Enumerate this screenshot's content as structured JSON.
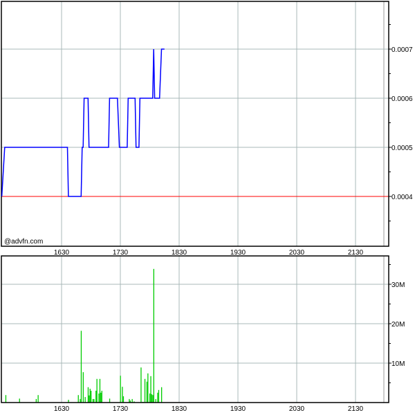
{
  "watermark": "@advfn.com",
  "colors": {
    "price_line": "#0000ff",
    "reference_line": "#ff0000",
    "volume_bars": "#00cc00",
    "grid": "#a9b8b8"
  },
  "chart_data": [
    {
      "type": "line",
      "step": true,
      "x_tick_labels": [
        "1630",
        "1730",
        "1830",
        "1930",
        "2030",
        "2130"
      ],
      "y_tick_labels": [
        "0.0007",
        "0.0006",
        "0.0005",
        "0.0004"
      ],
      "ylim": [
        0.0003,
        0.0008
      ],
      "xlim": [
        "15:29",
        "22:02"
      ],
      "grid": true,
      "reference_value": 0.0004,
      "series": [
        {
          "points": [
            [
              "15:29",
              0.0004
            ],
            [
              "15:32",
              0.0005
            ],
            [
              "16:36",
              0.0005
            ],
            [
              "16:37",
              0.0004
            ],
            [
              "16:50",
              0.0004
            ],
            [
              "16:51",
              0.0005
            ],
            [
              "16:52",
              0.0005
            ],
            [
              "16:53",
              0.0006
            ],
            [
              "16:57",
              0.0006
            ],
            [
              "16:58",
              0.0005
            ],
            [
              "17:18",
              0.0005
            ],
            [
              "17:19",
              0.0006
            ],
            [
              "17:27",
              0.0006
            ],
            [
              "17:29",
              0.0005
            ],
            [
              "17:37",
              0.0005
            ],
            [
              "17:38",
              0.0006
            ],
            [
              "17:45",
              0.0006
            ],
            [
              "17:46",
              0.0005
            ],
            [
              "17:49",
              0.0005
            ],
            [
              "17:50",
              0.0006
            ],
            [
              "18:03",
              0.0006
            ],
            [
              "18:04",
              0.0007
            ],
            [
              "18:05",
              0.0006
            ],
            [
              "18:10",
              0.0006
            ],
            [
              "18:12",
              0.0007
            ],
            [
              "18:15",
              0.0007
            ]
          ]
        }
      ]
    },
    {
      "type": "bar",
      "x_tick_labels": [
        "1630",
        "1730",
        "1830",
        "1930",
        "2030",
        "2130"
      ],
      "y_tick_labels": [
        "30M",
        "20M",
        "10M"
      ],
      "ylim": [
        0,
        37000000
      ],
      "grid": true,
      "bars": [
        [
          "15:33",
          1.9
        ],
        [
          "15:47",
          1.0
        ],
        [
          "16:04",
          0.9
        ],
        [
          "16:06",
          1.9
        ],
        [
          "16:37",
          0.7
        ],
        [
          "16:47",
          1.9
        ],
        [
          "16:49",
          0.9
        ],
        [
          "16:50",
          18.2
        ],
        [
          "16:52",
          7.7
        ],
        [
          "16:54",
          1.4
        ],
        [
          "16:57",
          3.9
        ],
        [
          "16:58",
          1.8
        ],
        [
          "16:59",
          3.5
        ],
        [
          "17:00",
          3.0
        ],
        [
          "17:02",
          0.9
        ],
        [
          "17:03",
          0.9
        ],
        [
          "17:05",
          3.0
        ],
        [
          "17:06",
          6.0
        ],
        [
          "17:08",
          2.3
        ],
        [
          "17:09",
          6.0
        ],
        [
          "17:10",
          2.5
        ],
        [
          "17:11",
          3.0
        ],
        [
          "17:19",
          1.0
        ],
        [
          "17:30",
          6.8
        ],
        [
          "17:32",
          4.0
        ],
        [
          "17:33",
          1.6
        ],
        [
          "17:39",
          0.9
        ],
        [
          "17:40",
          0.5
        ],
        [
          "17:42",
          0.9
        ],
        [
          "17:44",
          0.3
        ],
        [
          "17:51",
          8.9
        ],
        [
          "17:53",
          0.2
        ],
        [
          "17:55",
          6.0
        ],
        [
          "17:57",
          5.3
        ],
        [
          "17:58",
          7.4
        ],
        [
          "18:00",
          2.3
        ],
        [
          "18:01",
          6.7
        ],
        [
          "18:02",
          2.1
        ],
        [
          "18:03",
          1.9
        ],
        [
          "18:04",
          33.9
        ],
        [
          "18:06",
          0.9
        ],
        [
          "18:08",
          2.5
        ],
        [
          "18:09",
          3.2
        ],
        [
          "18:12",
          3.9
        ]
      ],
      "bar_unit": "M"
    }
  ]
}
